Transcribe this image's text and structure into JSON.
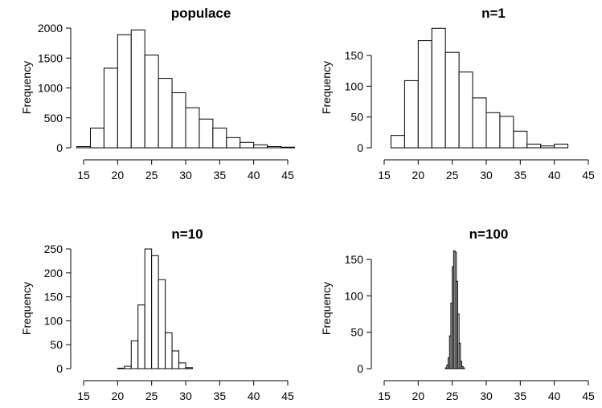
{
  "chart_data": [
    {
      "type": "bar",
      "title": "populace",
      "xlabel": "",
      "ylabel": "Frequency",
      "xlim": [
        15,
        45
      ],
      "ylim": [
        0,
        2000
      ],
      "xticks": [
        15,
        20,
        25,
        30,
        35,
        40,
        45
      ],
      "yticks": [
        0,
        500,
        1000,
        1500,
        2000
      ],
      "bin_width": 2,
      "bins_start": [
        14,
        16,
        18,
        20,
        22,
        24,
        26,
        28,
        30,
        32,
        34,
        36,
        38,
        40,
        42,
        44
      ],
      "values": [
        20,
        330,
        1330,
        1890,
        1970,
        1550,
        1160,
        920,
        670,
        480,
        330,
        170,
        90,
        50,
        20,
        10
      ]
    },
    {
      "type": "bar",
      "title": "n=1",
      "xlabel": "",
      "ylabel": "Frequency",
      "xlim": [
        15,
        45
      ],
      "ylim": [
        0,
        150
      ],
      "xticks": [
        15,
        20,
        25,
        30,
        35,
        40,
        45
      ],
      "yticks": [
        0,
        50,
        100,
        150
      ],
      "bin_width": 2,
      "bins_start": [
        16,
        18,
        20,
        22,
        24,
        26,
        28,
        30,
        32,
        34,
        36,
        38,
        40
      ],
      "values": [
        20,
        109,
        174,
        194,
        155,
        123,
        81,
        57,
        51,
        27,
        6,
        3,
        6
      ]
    },
    {
      "type": "bar",
      "title": "n=10",
      "xlabel": "",
      "ylabel": "Frequency",
      "xlim": [
        15,
        45
      ],
      "ylim": [
        0,
        250
      ],
      "xticks": [
        15,
        20,
        25,
        30,
        35,
        40,
        45
      ],
      "yticks": [
        0,
        50,
        100,
        150,
        200,
        250
      ],
      "bin_width": 1,
      "bins_start": [
        20,
        21,
        22,
        23,
        24,
        25,
        26,
        27,
        28,
        29,
        30
      ],
      "values": [
        1,
        5,
        58,
        133,
        250,
        236,
        186,
        75,
        37,
        12,
        2
      ]
    },
    {
      "type": "bar",
      "title": "n=100",
      "xlabel": "",
      "ylabel": "Frequency",
      "xlim": [
        15,
        45
      ],
      "ylim": [
        0,
        150
      ],
      "xticks": [
        15,
        20,
        25,
        30,
        35,
        40,
        45
      ],
      "yticks": [
        0,
        50,
        100,
        150
      ],
      "bin_width": 0.2,
      "bins_start": [
        24.0,
        24.2,
        24.4,
        24.6,
        24.8,
        25.0,
        25.2,
        25.4,
        25.6,
        25.8,
        26.0,
        26.2,
        26.4,
        26.6
      ],
      "values": [
        1,
        5,
        15,
        45,
        90,
        140,
        162,
        160,
        120,
        75,
        35,
        10,
        3,
        1
      ]
    }
  ]
}
